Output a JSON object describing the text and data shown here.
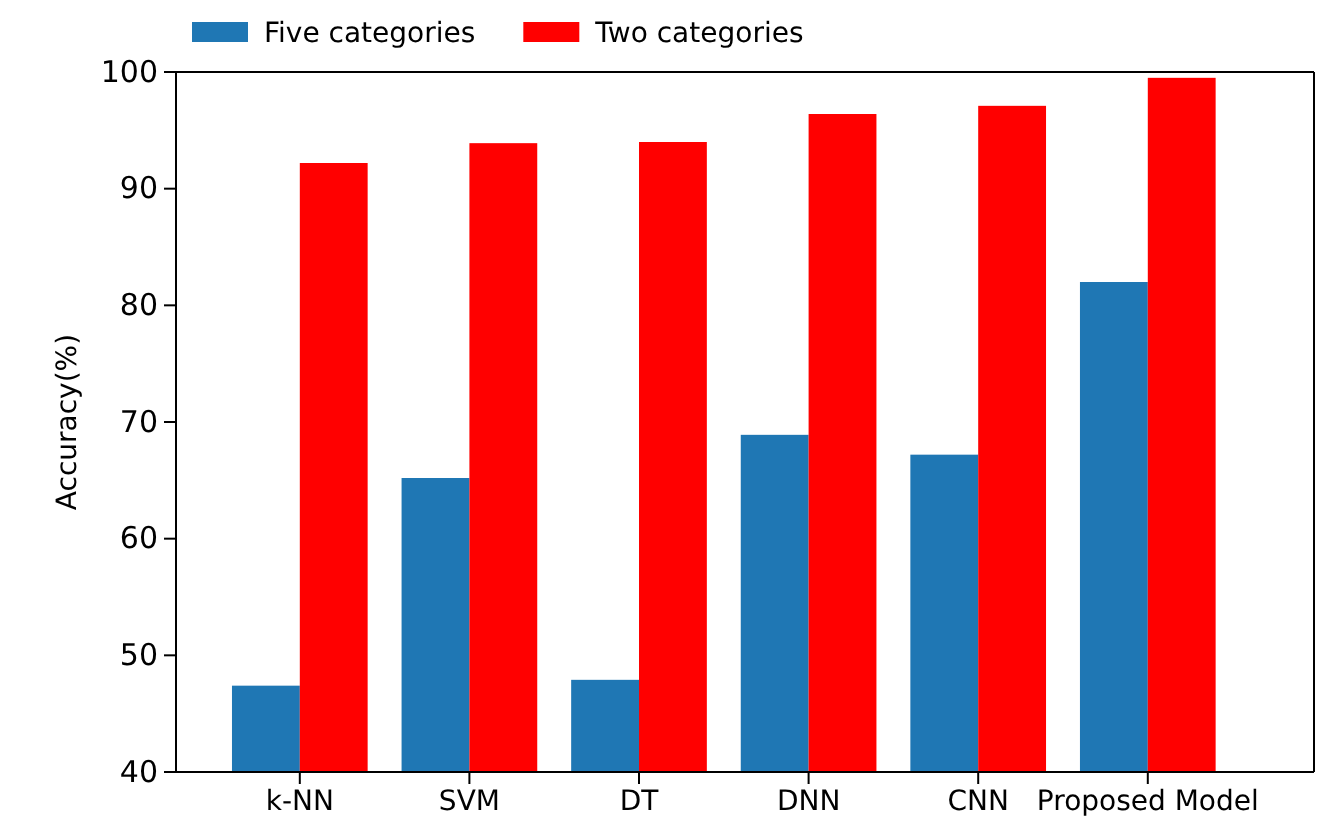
{
  "chart_data": {
    "type": "bar",
    "ylabel": "Accuracy(%)",
    "categories": [
      "k-NN",
      "SVM",
      "DT",
      "DNN",
      "CNN",
      "Proposed Model"
    ],
    "series": [
      {
        "name": "Five categories",
        "color": "#1f77b4",
        "values": [
          47.4,
          65.2,
          47.9,
          68.9,
          67.2,
          82.0
        ]
      },
      {
        "name": "Two categories",
        "color": "#ff0000",
        "values": [
          92.2,
          93.9,
          94.0,
          96.4,
          97.1,
          99.5
        ]
      }
    ],
    "ylim": [
      40,
      100
    ],
    "yticks": [
      40,
      50,
      60,
      70,
      80,
      90,
      100
    ],
    "grid": false,
    "legend": "top left"
  }
}
